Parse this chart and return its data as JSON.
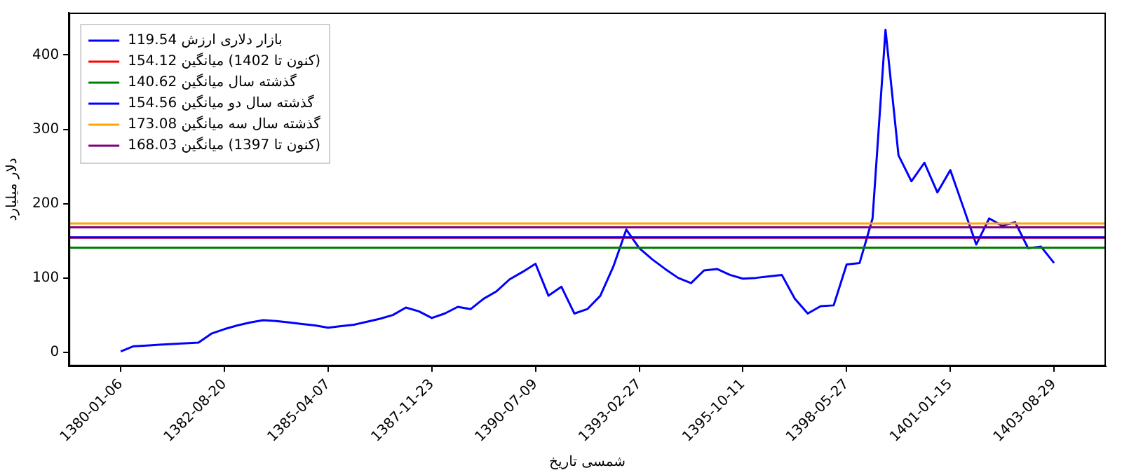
{
  "chart_data": {
    "type": "line",
    "xlabel": "تاریخ شمسی",
    "ylabel": "میلیارد دلار",
    "categories": [
      null,
      null,
      null,
      null,
      "1380-01-06",
      null,
      null,
      null,
      null,
      null,
      null,
      null,
      "1382-08-20",
      null,
      null,
      null,
      null,
      null,
      null,
      null,
      "1385-04-07",
      null,
      null,
      null,
      null,
      null,
      null,
      null,
      "1387-11-23",
      null,
      null,
      null,
      null,
      null,
      null,
      null,
      "1390-07-09",
      null,
      null,
      null,
      null,
      null,
      null,
      null,
      "1393-02-27",
      null,
      null,
      null,
      null,
      null,
      null,
      null,
      "1395-10-11",
      null,
      null,
      null,
      null,
      null,
      null,
      null,
      "1398-05-27",
      null,
      null,
      null,
      null,
      null,
      null,
      null,
      "1401-01-15",
      null,
      null,
      null,
      null,
      null,
      null,
      null,
      "1403-08-29",
      null,
      null,
      null,
      null
    ],
    "series": [
      {
        "name": "119.54 ارزش دلاری بازار",
        "color": "#0000ff",
        "values": [
          null,
          null,
          null,
          null,
          1,
          8,
          9,
          10,
          11,
          12,
          13,
          25,
          31,
          36,
          40,
          43,
          42,
          40,
          38,
          36,
          33,
          35,
          37,
          41,
          45,
          50,
          60,
          55,
          46,
          52,
          61,
          58,
          72,
          82,
          98,
          108,
          119,
          76,
          88,
          52,
          58,
          76,
          115,
          165,
          140,
          125,
          112,
          100,
          93,
          110,
          112,
          104,
          99,
          100,
          102,
          104,
          72,
          52,
          62,
          63,
          118,
          120,
          180,
          434,
          265,
          230,
          255,
          215,
          245,
          195,
          145,
          180,
          170,
          175,
          140,
          142,
          120,
          null,
          null,
          null,
          null
        ]
      }
    ],
    "ref_lines": [
      {
        "axis": "y",
        "value": 154.12,
        "label": "154.12 میانگین (1402 تا کنون)",
        "color": "#ff0000"
      },
      {
        "axis": "y",
        "value": 140.62,
        "label": "140.62 میانگین سال گذشته",
        "color": "#008000"
      },
      {
        "axis": "y",
        "value": 154.56,
        "label": "154.56 میانگین دو سال گذشته",
        "color": "#0000ff"
      },
      {
        "axis": "y",
        "value": 173.08,
        "label": "173.08 میانگین سه سال گذشته",
        "color": "#ffa500"
      },
      {
        "axis": "y",
        "value": 168.03,
        "label": "168.03 میانگین (1397 تا کنون)",
        "color": "#800080"
      }
    ],
    "ylim": [
      -19,
      457
    ],
    "yticks": [
      0,
      100,
      200,
      300,
      400
    ],
    "grid": false,
    "legend": "top left",
    "marker": "none",
    "line_style": "solid"
  }
}
